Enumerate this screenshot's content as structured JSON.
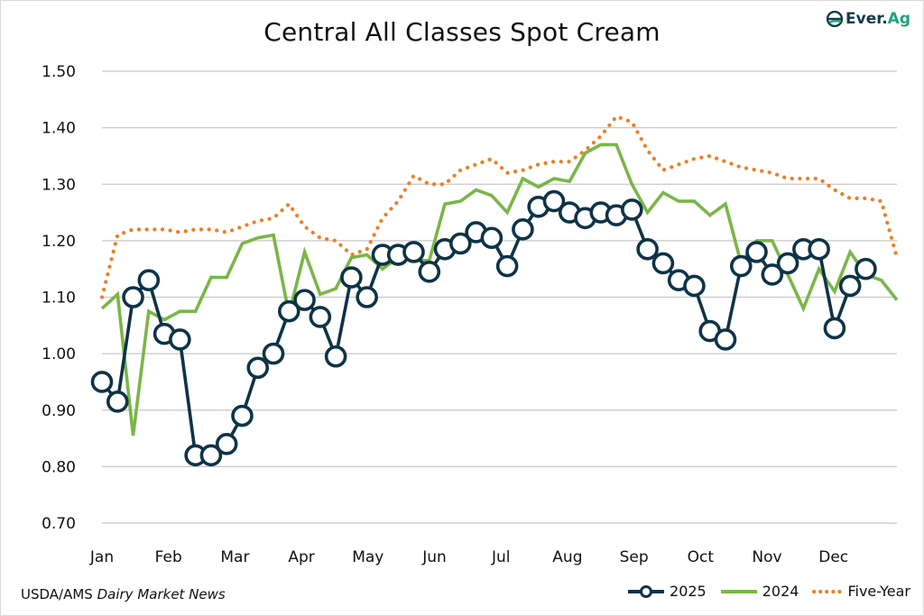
{
  "title": "Central All Classes Spot Cream",
  "brand": {
    "name_part1": "Ever.",
    "name_part2": "Ag",
    "icon": "ever-ag-logo-icon"
  },
  "source": {
    "prefix": "USDA/AMS ",
    "publication": "Dairy Market News"
  },
  "colors": {
    "s2025": "#0e3347",
    "s2024": "#7ab648",
    "five_year": "#f07d21",
    "grid": "#c8c8c8"
  },
  "chart_data": {
    "type": "line",
    "title": "Central All Classes Spot Cream",
    "xlabel": "",
    "ylabel": "",
    "ylim": [
      0.7,
      1.5
    ],
    "yticks": [
      "0.70",
      "0.80",
      "0.90",
      "1.00",
      "1.10",
      "1.20",
      "1.30",
      "1.40",
      "1.50"
    ],
    "ytick_values": [
      0.7,
      0.8,
      0.9,
      1.0,
      1.1,
      1.2,
      1.3,
      1.4,
      1.5
    ],
    "xticks": [
      "Jan",
      "Feb",
      "Mar",
      "Apr",
      "May",
      "Jun",
      "Jul",
      "Aug",
      "Sep",
      "Oct",
      "Nov",
      "Dec"
    ],
    "x_unit": "week of year (1-52)",
    "xlim": [
      1,
      52
    ],
    "grid": true,
    "legend_position": "bottom-right",
    "series": [
      {
        "name": "2025",
        "style": "line-with-open-circle-markers",
        "x": [
          1,
          2,
          3,
          4,
          5,
          6,
          7,
          8,
          9,
          10,
          11,
          12,
          13,
          14,
          15,
          16,
          17,
          18,
          19,
          20,
          21,
          22,
          23,
          24,
          25,
          26,
          27,
          28,
          29,
          30,
          31,
          32,
          33,
          34,
          35,
          36,
          37,
          38,
          39,
          40,
          41,
          42,
          43,
          44,
          45,
          46,
          47,
          48,
          49,
          50
        ],
        "values": [
          0.95,
          0.915,
          1.1,
          1.13,
          1.035,
          1.025,
          0.82,
          0.82,
          0.84,
          0.89,
          0.975,
          1.0,
          1.075,
          1.095,
          1.065,
          0.995,
          1.135,
          1.1,
          1.175,
          1.175,
          1.18,
          1.145,
          1.185,
          1.195,
          1.215,
          1.205,
          1.155,
          1.22,
          1.26,
          1.27,
          1.25,
          1.24,
          1.25,
          1.245,
          1.255,
          1.185,
          1.16,
          1.13,
          1.12,
          1.04,
          1.025,
          1.155,
          1.18,
          1.14,
          1.16,
          1.185,
          1.185,
          1.045,
          1.12,
          1.15
        ]
      },
      {
        "name": "2024",
        "style": "solid-line",
        "x": [
          1,
          2,
          3,
          4,
          5,
          6,
          7,
          8,
          9,
          10,
          11,
          12,
          13,
          14,
          15,
          16,
          17,
          18,
          19,
          20,
          21,
          22,
          23,
          24,
          25,
          26,
          27,
          28,
          29,
          30,
          31,
          32,
          33,
          34,
          35,
          36,
          37,
          38,
          39,
          40,
          41,
          42,
          43,
          44,
          45,
          46,
          47,
          48,
          49,
          50,
          51,
          52
        ],
        "values": [
          1.08,
          1.105,
          0.855,
          1.075,
          1.06,
          1.075,
          1.075,
          1.135,
          1.135,
          1.195,
          1.205,
          1.21,
          1.07,
          1.18,
          1.105,
          1.115,
          1.17,
          1.175,
          1.15,
          1.17,
          1.165,
          1.165,
          1.265,
          1.27,
          1.29,
          1.28,
          1.25,
          1.31,
          1.295,
          1.31,
          1.305,
          1.355,
          1.37,
          1.37,
          1.3,
          1.25,
          1.285,
          1.27,
          1.27,
          1.245,
          1.265,
          1.16,
          1.2,
          1.2,
          1.14,
          1.08,
          1.15,
          1.11,
          1.18,
          1.14,
          1.13,
          1.095
        ]
      },
      {
        "name": "Five-Year",
        "style": "dotted-line",
        "x": [
          1,
          2,
          3,
          4,
          5,
          6,
          7,
          8,
          9,
          10,
          11,
          12,
          13,
          14,
          15,
          16,
          17,
          18,
          19,
          20,
          21,
          22,
          23,
          24,
          25,
          26,
          27,
          28,
          29,
          30,
          31,
          32,
          33,
          34,
          35,
          36,
          37,
          38,
          39,
          40,
          41,
          42,
          43,
          44,
          45,
          46,
          47,
          48,
          49,
          50,
          51,
          52
        ],
        "values": [
          1.1,
          1.21,
          1.22,
          1.22,
          1.22,
          1.215,
          1.22,
          1.22,
          1.215,
          1.225,
          1.235,
          1.24,
          1.265,
          1.225,
          1.205,
          1.2,
          1.175,
          1.185,
          1.24,
          1.27,
          1.315,
          1.3,
          1.3,
          1.325,
          1.335,
          1.345,
          1.32,
          1.325,
          1.335,
          1.34,
          1.34,
          1.36,
          1.385,
          1.42,
          1.41,
          1.36,
          1.325,
          1.335,
          1.345,
          1.35,
          1.34,
          1.33,
          1.325,
          1.32,
          1.31,
          1.31,
          1.31,
          1.29,
          1.275,
          1.275,
          1.27,
          1.17
        ]
      }
    ]
  }
}
